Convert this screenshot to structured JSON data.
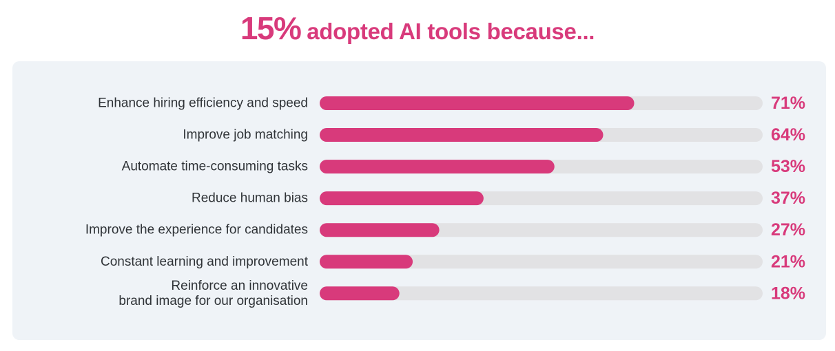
{
  "header": {
    "title_highlight": "15%",
    "title_rest": " adopted AI tools because..."
  },
  "colors": {
    "accent": "#d83a7b",
    "track": "#e2e2e4",
    "panel": "#eff3f7",
    "label": "#2f3337"
  },
  "chart_data": {
    "type": "bar",
    "orientation": "horizontal",
    "categories": [
      [
        "Enhance hiring efficiency and speed"
      ],
      [
        "Improve job matching"
      ],
      [
        "Automate time-consuming tasks"
      ],
      [
        "Reduce human bias"
      ],
      [
        "Improve the experience for candidates"
      ],
      [
        "Constant learning and improvement"
      ],
      [
        "Reinforce an innovative",
        "brand image for our organisation"
      ]
    ],
    "values": [
      71,
      64,
      53,
      37,
      27,
      21,
      18
    ],
    "value_labels": [
      "71%",
      "64%",
      "53%",
      "37%",
      "27%",
      "21%",
      "18%"
    ],
    "xlim": [
      0,
      100
    ],
    "grid": false,
    "legend": "none"
  }
}
